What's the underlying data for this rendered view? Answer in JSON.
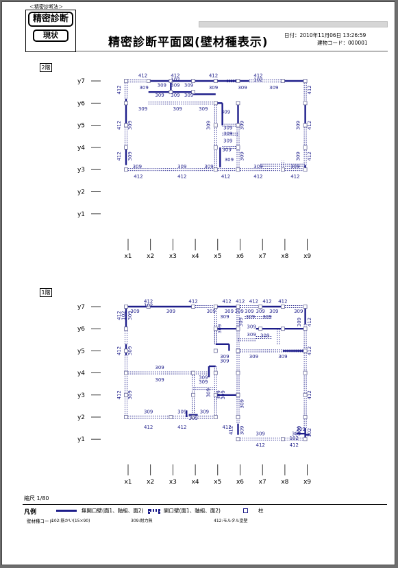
{
  "header": {
    "method": "＜精密診断法＞",
    "logo_top": "精密診断",
    "logo_bottom": "現状",
    "title": "精密診断平面図(壁材種表示)",
    "date": "日付：2010年11月06日  13:26:59",
    "building_code": "建物コード：000001"
  },
  "floors": [
    {
      "label": "2階"
    },
    {
      "label": "1階"
    }
  ],
  "axes": {
    "y": [
      "y7",
      "y6",
      "y5",
      "y4",
      "y3",
      "y2",
      "y1"
    ],
    "x": [
      "x1",
      "x2",
      "x3",
      "x4",
      "x5",
      "x6",
      "x7",
      "x8",
      "x9"
    ]
  },
  "colors": {
    "wall": "#1d1d8a",
    "grid": "#000000",
    "column": "#6a6a9a"
  },
  "plan2": {
    "solid_walls": [
      [
        3,
        7,
        4,
        7
      ],
      [
        5,
        7,
        6,
        7
      ],
      [
        6,
        7,
        6.5,
        7
      ],
      [
        8,
        7,
        9,
        7
      ],
      [
        1,
        6.2,
        1,
        5
      ],
      [
        9,
        6,
        9,
        5
      ],
      [
        1,
        4,
        1,
        3.2
      ],
      [
        2,
        7,
        3,
        7
      ],
      [
        4,
        7,
        5,
        7
      ],
      [
        2,
        6.5,
        4,
        6.5
      ],
      [
        4,
        6.4,
        5,
        6.4
      ],
      [
        5,
        6,
        5.3,
        6
      ],
      [
        5.3,
        5,
        5.3,
        6
      ],
      [
        6,
        6,
        6,
        5
      ],
      [
        5.2,
        3.1,
        5.2,
        4
      ],
      [
        9,
        3.2,
        9,
        3
      ],
      [
        3,
        7,
        3,
        6.5
      ]
    ],
    "open_walls": [
      [
        1,
        7,
        2,
        7
      ],
      [
        5.5,
        7,
        6,
        7
      ],
      [
        6.5,
        7,
        8,
        7
      ],
      [
        1,
        7,
        1,
        6.2
      ],
      [
        9,
        7,
        9,
        6
      ],
      [
        1,
        5,
        1,
        4
      ],
      [
        9,
        5,
        9,
        3.2
      ],
      [
        1,
        3,
        2,
        3
      ],
      [
        2,
        3,
        5,
        3
      ],
      [
        5,
        3,
        6,
        3
      ],
      [
        6,
        3,
        8,
        3
      ],
      [
        8,
        3,
        9,
        3
      ],
      [
        5,
        6,
        5,
        3
      ],
      [
        6,
        5,
        6,
        3
      ],
      [
        5.3,
        4,
        6,
        4
      ],
      [
        5.3,
        5,
        6,
        5
      ],
      [
        5.3,
        4.6,
        6,
        4.6
      ],
      [
        8,
        3.2,
        8,
        3.4
      ],
      [
        2,
        6,
        3,
        6
      ],
      [
        3,
        6,
        5,
        6
      ],
      [
        7,
        3.2,
        9,
        3.2
      ]
    ],
    "columns": [
      [
        1,
        7
      ],
      [
        2,
        7
      ],
      [
        3,
        7
      ],
      [
        4,
        7
      ],
      [
        5,
        7
      ],
      [
        6,
        7
      ],
      [
        8,
        7
      ],
      [
        9,
        7
      ],
      [
        9,
        6
      ],
      [
        9,
        5
      ],
      [
        9,
        4
      ],
      [
        1,
        6
      ],
      [
        1,
        5
      ],
      [
        1,
        4
      ],
      [
        1,
        3
      ],
      [
        5,
        6
      ],
      [
        6,
        6
      ],
      [
        5,
        5
      ],
      [
        6,
        5
      ],
      [
        5,
        4
      ],
      [
        6,
        4
      ],
      [
        5,
        3
      ],
      [
        6,
        3
      ],
      [
        8,
        3
      ],
      [
        9,
        3
      ],
      [
        3,
        6.5
      ],
      [
        4,
        6.5
      ]
    ],
    "labels": [
      {
        "x": 1.75,
        "y": 7.25,
        "t": "412"
      },
      {
        "x": 3.2,
        "y": 7.25,
        "t": "412"
      },
      {
        "x": 4.9,
        "y": 7.25,
        "t": "412"
      },
      {
        "x": 6.9,
        "y": 7.25,
        "t": "412"
      },
      {
        "x": 3.2,
        "y": 7.06,
        "t": "102"
      },
      {
        "x": 6.9,
        "y": 7.06,
        "t": "102"
      },
      {
        "x": 1.8,
        "y": 6.7,
        "t": "309"
      },
      {
        "x": 2.6,
        "y": 6.82,
        "t": "309"
      },
      {
        "x": 3.2,
        "y": 6.82,
        "t": "309"
      },
      {
        "x": 3.8,
        "y": 6.82,
        "t": "309"
      },
      {
        "x": 4.9,
        "y": 6.7,
        "t": "309"
      },
      {
        "x": 6.2,
        "y": 6.7,
        "t": "309"
      },
      {
        "x": 7.6,
        "y": 6.7,
        "t": "309"
      },
      {
        "x": 2.5,
        "y": 6.36,
        "t": "309"
      },
      {
        "x": 3.2,
        "y": 6.36,
        "t": "309"
      },
      {
        "x": 3.8,
        "y": 6.36,
        "t": "309"
      },
      {
        "x": 1.75,
        "y": 5.75,
        "t": "309"
      },
      {
        "x": 3.3,
        "y": 5.75,
        "t": "309"
      },
      {
        "x": 4.45,
        "y": 5.75,
        "t": "309"
      },
      {
        "x": 5.45,
        "y": 5.6,
        "t": "309"
      },
      {
        "x": 5.55,
        "y": 4.9,
        "t": "309"
      },
      {
        "x": 5.55,
        "y": 4.63,
        "t": "309"
      },
      {
        "x": 5.55,
        "y": 4.3,
        "t": "309"
      },
      {
        "x": 5.5,
        "y": 3.9,
        "t": "309"
      },
      {
        "x": 5.6,
        "y": 3.45,
        "t": "309"
      },
      {
        "x": 1.5,
        "y": 3.15,
        "t": "309"
      },
      {
        "x": 3.5,
        "y": 3.15,
        "t": "309"
      },
      {
        "x": 4.7,
        "y": 3.15,
        "t": "309"
      },
      {
        "x": 6.9,
        "y": 3.15,
        "t": "309"
      },
      {
        "x": 8.55,
        "y": 3.15,
        "t": "309"
      },
      {
        "x": 1.55,
        "y": 2.7,
        "t": "412"
      },
      {
        "x": 3.5,
        "y": 2.7,
        "t": "412"
      },
      {
        "x": 5.45,
        "y": 2.7,
        "t": "412"
      },
      {
        "x": 6.9,
        "y": 2.7,
        "t": "412"
      },
      {
        "x": 8.55,
        "y": 2.7,
        "t": "412"
      }
    ],
    "vlabels": [
      {
        "x": 0.75,
        "y": 6.6,
        "t": "412"
      },
      {
        "x": 9.25,
        "y": 6.6,
        "t": "412"
      },
      {
        "x": 0.75,
        "y": 5,
        "t": "412"
      },
      {
        "x": 1.25,
        "y": 5,
        "t": "309"
      },
      {
        "x": 4.75,
        "y": 5,
        "t": "309"
      },
      {
        "x": 6.25,
        "y": 5,
        "t": "309"
      },
      {
        "x": 8.75,
        "y": 5,
        "t": "309"
      },
      {
        "x": 9.25,
        "y": 5,
        "t": "412"
      },
      {
        "x": 0.75,
        "y": 3.6,
        "t": "412"
      },
      {
        "x": 1.25,
        "y": 3.6,
        "t": "309"
      },
      {
        "x": 6.25,
        "y": 3.6,
        "t": "309"
      },
      {
        "x": 8.75,
        "y": 3.6,
        "t": "309"
      },
      {
        "x": 9.25,
        "y": 3.6,
        "t": "412"
      }
    ]
  },
  "plan1": {
    "solid_walls": [
      [
        2,
        7,
        4,
        7
      ],
      [
        1,
        7.05,
        1,
        6
      ],
      [
        1,
        7,
        2,
        7
      ],
      [
        5,
        7,
        6,
        7
      ],
      [
        7,
        7,
        8,
        7
      ],
      [
        9,
        7,
        9,
        6.2
      ],
      [
        5,
        6,
        6,
        6
      ],
      [
        6.8,
        6,
        8,
        6
      ],
      [
        8,
        6,
        9,
        6
      ],
      [
        5,
        5.3,
        5.6,
        5.3
      ],
      [
        5.6,
        5,
        5.6,
        5.3
      ],
      [
        8,
        5,
        9,
        5
      ],
      [
        4.7,
        4.3,
        5,
        4.3
      ],
      [
        4.7,
        3.8,
        4.7,
        4.3
      ],
      [
        5,
        3,
        6,
        3
      ],
      [
        3.8,
        2.1,
        4.2,
        2.1
      ],
      [
        3.7,
        2.3,
        3.7,
        2
      ],
      [
        6,
        1.7,
        6,
        1.2
      ],
      [
        9,
        1.5,
        9,
        1
      ],
      [
        9,
        1.2,
        9.2,
        1.2
      ],
      [
        8.6,
        1.25,
        9,
        1.25
      ],
      [
        1,
        4.8,
        1,
        5.3
      ]
    ],
    "open_walls": [
      [
        1,
        6,
        1,
        5.3
      ],
      [
        1,
        4.8,
        1,
        2
      ],
      [
        1,
        2,
        3,
        2
      ],
      [
        3,
        2,
        3.8,
        2
      ],
      [
        4.2,
        2,
        5,
        2
      ],
      [
        1,
        4,
        4.7,
        4
      ],
      [
        4,
        4,
        4,
        2
      ],
      [
        4,
        3.3,
        5,
        3.3
      ],
      [
        5,
        4.3,
        5,
        2
      ],
      [
        6,
        3,
        6,
        1.7
      ],
      [
        6,
        1,
        9,
        1
      ],
      [
        6,
        5,
        6,
        3
      ],
      [
        6,
        5,
        9,
        5
      ],
      [
        9,
        6.2,
        9,
        5
      ],
      [
        9,
        5,
        9,
        1.5
      ],
      [
        5,
        7,
        5,
        5.3
      ],
      [
        6,
        7,
        6,
        6
      ],
      [
        6.3,
        6.5,
        7.5,
        6.5
      ],
      [
        6.8,
        5.6,
        7.5,
        5.6
      ],
      [
        6,
        5.5,
        6.8,
        5.5
      ],
      [
        7.8,
        6,
        7.8,
        5.3
      ],
      [
        4,
        7,
        5,
        7
      ],
      [
        6,
        7,
        7,
        7
      ],
      [
        8,
        7,
        9,
        7
      ],
      [
        5,
        6,
        5,
        5.3
      ],
      [
        6,
        7,
        6,
        5
      ]
    ],
    "columns": [
      [
        1,
        7
      ],
      [
        2,
        7
      ],
      [
        4,
        7
      ],
      [
        5,
        7
      ],
      [
        6,
        7
      ],
      [
        7,
        7
      ],
      [
        8,
        7
      ],
      [
        9,
        7
      ],
      [
        9,
        6
      ],
      [
        9,
        5
      ],
      [
        9,
        4
      ],
      [
        9,
        3
      ],
      [
        9,
        2
      ],
      [
        9,
        1
      ],
      [
        1,
        6
      ],
      [
        1,
        5
      ],
      [
        1,
        4
      ],
      [
        1,
        3
      ],
      [
        1,
        2
      ],
      [
        3,
        2
      ],
      [
        4,
        2
      ],
      [
        5,
        2
      ],
      [
        6,
        1
      ],
      [
        8,
        1
      ],
      [
        5,
        6
      ],
      [
        6,
        6
      ],
      [
        7,
        6
      ],
      [
        8,
        6
      ],
      [
        5,
        5
      ],
      [
        6,
        5
      ],
      [
        5,
        4
      ],
      [
        6,
        4
      ],
      [
        4,
        4
      ],
      [
        4,
        3
      ],
      [
        5,
        3
      ],
      [
        6,
        3
      ],
      [
        6,
        2
      ]
    ],
    "labels": [
      {
        "x": 2,
        "y": 7.25,
        "t": "412"
      },
      {
        "x": 4,
        "y": 7.25,
        "t": "412"
      },
      {
        "x": 5.5,
        "y": 7.25,
        "t": "412"
      },
      {
        "x": 6.1,
        "y": 7.25,
        "t": "412"
      },
      {
        "x": 6.7,
        "y": 7.25,
        "t": "412"
      },
      {
        "x": 7.3,
        "y": 7.25,
        "t": "412"
      },
      {
        "x": 8,
        "y": 7.25,
        "t": "412"
      },
      {
        "x": 2,
        "y": 7.06,
        "t": "102"
      },
      {
        "x": 1.4,
        "y": 6.8,
        "t": "309"
      },
      {
        "x": 3,
        "y": 6.8,
        "t": "309"
      },
      {
        "x": 4.8,
        "y": 6.8,
        "t": "309"
      },
      {
        "x": 5.6,
        "y": 6.8,
        "t": "309"
      },
      {
        "x": 6.05,
        "y": 6.8,
        "t": "309"
      },
      {
        "x": 6.5,
        "y": 6.8,
        "t": "309"
      },
      {
        "x": 7,
        "y": 6.8,
        "t": "309"
      },
      {
        "x": 7.6,
        "y": 6.8,
        "t": "309"
      },
      {
        "x": 8.7,
        "y": 6.8,
        "t": "309"
      },
      {
        "x": 5.4,
        "y": 6.55,
        "t": "309"
      },
      {
        "x": 6.55,
        "y": 6.55,
        "t": "309"
      },
      {
        "x": 7.3,
        "y": 6.55,
        "t": "309"
      },
      {
        "x": 6.6,
        "y": 6.1,
        "t": "309"
      },
      {
        "x": 6.6,
        "y": 5.75,
        "t": "309"
      },
      {
        "x": 7.2,
        "y": 5.7,
        "t": "309"
      },
      {
        "x": 5.4,
        "y": 4.75,
        "t": "309"
      },
      {
        "x": 5.4,
        "y": 4.55,
        "t": "309"
      },
      {
        "x": 6.7,
        "y": 4.75,
        "t": "309"
      },
      {
        "x": 8,
        "y": 4.75,
        "t": "309"
      },
      {
        "x": 2.5,
        "y": 4.25,
        "t": "309"
      },
      {
        "x": 2.5,
        "y": 3.7,
        "t": "309"
      },
      {
        "x": 4.45,
        "y": 3.8,
        "t": "309"
      },
      {
        "x": 4.45,
        "y": 3.6,
        "t": "309"
      },
      {
        "x": 2,
        "y": 2.25,
        "t": "309"
      },
      {
        "x": 3.5,
        "y": 2.25,
        "t": "309"
      },
      {
        "x": 4.5,
        "y": 2.25,
        "t": "309"
      },
      {
        "x": 4,
        "y": 1.95,
        "t": "309"
      },
      {
        "x": 2,
        "y": 1.55,
        "t": "412"
      },
      {
        "x": 3.5,
        "y": 1.55,
        "t": "412"
      },
      {
        "x": 5.5,
        "y": 1.55,
        "t": "412"
      },
      {
        "x": 7,
        "y": 1.25,
        "t": "309"
      },
      {
        "x": 8.6,
        "y": 1.25,
        "t": "309"
      },
      {
        "x": 8.5,
        "y": 1.05,
        "t": "102"
      },
      {
        "x": 7,
        "y": 0.75,
        "t": "412"
      },
      {
        "x": 8.5,
        "y": 0.75,
        "t": "412"
      },
      {
        "x": 8.8,
        "y": 1.45,
        "t": "309"
      }
    ],
    "vlabels": [
      {
        "x": 0.75,
        "y": 6.6,
        "t": "412"
      },
      {
        "x": 0.95,
        "y": 6.6,
        "t": "102"
      },
      {
        "x": 1.25,
        "y": 6.6,
        "t": "309"
      },
      {
        "x": 9.25,
        "y": 6.3,
        "t": "412"
      },
      {
        "x": 5.25,
        "y": 6,
        "t": "309"
      },
      {
        "x": 6.2,
        "y": 6.3,
        "t": "309"
      },
      {
        "x": 8.8,
        "y": 6.3,
        "t": "309"
      },
      {
        "x": 0.75,
        "y": 5,
        "t": "412"
      },
      {
        "x": 1.25,
        "y": 5,
        "t": "309"
      },
      {
        "x": 9.25,
        "y": 5,
        "t": "412"
      },
      {
        "x": 0.75,
        "y": 3,
        "t": "412"
      },
      {
        "x": 1.25,
        "y": 3,
        "t": "309"
      },
      {
        "x": 4.75,
        "y": 3.1,
        "t": "309"
      },
      {
        "x": 5.2,
        "y": 3,
        "t": "309"
      },
      {
        "x": 5.4,
        "y": 3,
        "t": "309"
      },
      {
        "x": 6.25,
        "y": 2.6,
        "t": "309"
      },
      {
        "x": 9.25,
        "y": 3,
        "t": "412"
      },
      {
        "x": 5.75,
        "y": 1.4,
        "t": "412"
      },
      {
        "x": 6.25,
        "y": 1.4,
        "t": "309"
      },
      {
        "x": 8.8,
        "y": 1.4,
        "t": "309"
      },
      {
        "x": 9.25,
        "y": 1.3,
        "t": "102"
      }
    ]
  },
  "scale": "縮尺 1/80",
  "legend": {
    "title": "凡例",
    "solid": "無開口壁(面1、軸組、面2)",
    "open": "開口壁(面1、軸組、面2)",
    "column": "柱"
  },
  "codes": {
    "label": "壁材種コード",
    "c102": "102:筋かい(15×90)",
    "c309": "309:耐力無",
    "c412": "412:モルタル塗壁"
  }
}
